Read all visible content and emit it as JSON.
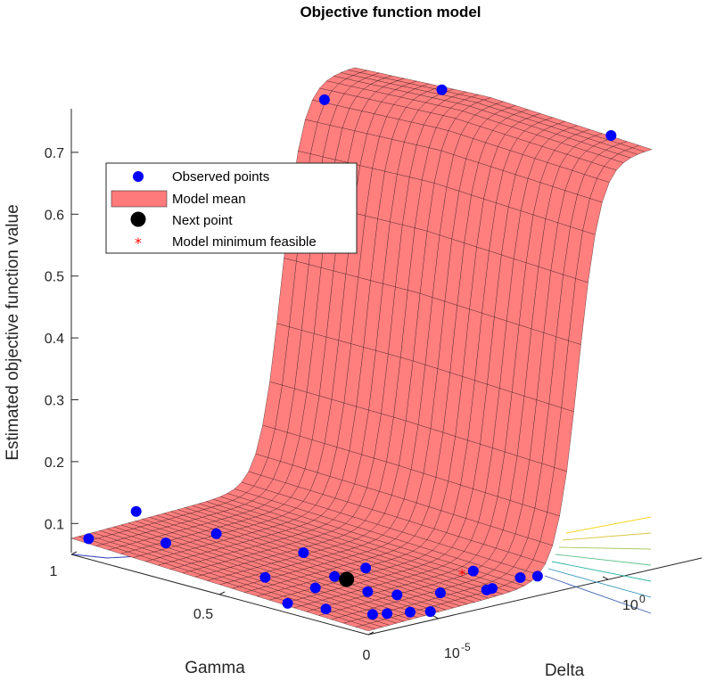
{
  "chart_data": {
    "type": "surface3d",
    "title": "Objective function model",
    "xlabel": "Gamma",
    "ylabel": "Delta",
    "zlabel": "Estimated objective function value",
    "x_ticks": [
      "0",
      "0.5",
      "1"
    ],
    "y_ticks": [
      "10",
      "10"
    ],
    "y_tick_exponents": [
      "-5",
      "0"
    ],
    "y_scale": "log",
    "z_ticks": [
      "0.1",
      "0.2",
      "0.3",
      "0.4",
      "0.5",
      "0.6",
      "0.7"
    ],
    "z_range": [
      0.05,
      0.75
    ],
    "x_range": [
      0,
      1
    ],
    "log10_delta_range": [
      -7,
      3
    ],
    "legend": {
      "placement": "upper-left",
      "entries": [
        {
          "label": "Observed points",
          "marker": "dot",
          "color": "#0000ff"
        },
        {
          "label": "Model mean",
          "marker": "patch",
          "color": "#ff7a7a"
        },
        {
          "label": "Next point",
          "marker": "dot",
          "color": "#000000"
        },
        {
          "label": "Model minimum feasible",
          "marker": "asterisk",
          "color": "#ff0000"
        }
      ]
    },
    "surface_color": "#ff7a7a",
    "surface_edge_color": "#2a1515",
    "observed_points": [
      {
        "gamma": 0.98,
        "log_delta": -6.6,
        "value": 0.073
      },
      {
        "gamma": 0.72,
        "log_delta": -6.6,
        "value": 0.1
      },
      {
        "gamma": 0.82,
        "log_delta": -6.6,
        "value": 0.138
      },
      {
        "gamma": 0.55,
        "log_delta": -6.6,
        "value": 0.137
      },
      {
        "gamma": 0.5,
        "log_delta": -5.4,
        "value": 0.058
      },
      {
        "gamma": 0.3,
        "log_delta": -6.7,
        "value": 0.058
      },
      {
        "gamma": 0.2,
        "log_delta": -6.4,
        "value": 0.058
      },
      {
        "gamma": 0.35,
        "log_delta": -5.2,
        "value": 0.058
      },
      {
        "gamma": 0.1,
        "log_delta": -5.8,
        "value": 0.055
      },
      {
        "gamma": 0.08,
        "log_delta": -5.5,
        "value": 0.055
      },
      {
        "gamma": 0.05,
        "log_delta": -5.0,
        "value": 0.055
      },
      {
        "gamma": 0.02,
        "log_delta": -4.6,
        "value": 0.055
      },
      {
        "gamma": 0.25,
        "log_delta": -4.4,
        "value": 0.055
      },
      {
        "gamma": 0.18,
        "log_delta": -4.1,
        "value": 0.055
      },
      {
        "gamma": 0.4,
        "log_delta": -4.0,
        "value": 0.055
      },
      {
        "gamma": 0.6,
        "log_delta": -3.0,
        "value": 0.055
      },
      {
        "gamma": 0.12,
        "log_delta": -3.2,
        "value": 0.055
      },
      {
        "gamma": 0.4,
        "log_delta": -2.9,
        "value": 0.055
      },
      {
        "gamma": 0.06,
        "log_delta": -2.2,
        "value": 0.055
      },
      {
        "gamma": 0.06,
        "log_delta": -2.0,
        "value": 0.055
      },
      {
        "gamma": 0.2,
        "log_delta": -1.2,
        "value": 0.055
      },
      {
        "gamma": 0.08,
        "log_delta": -0.8,
        "value": 0.055
      },
      {
        "gamma": 0.06,
        "log_delta": -0.4,
        "value": 0.055
      },
      {
        "gamma": 0.94,
        "log_delta": 1.3,
        "value": 0.69
      },
      {
        "gamma": 0.65,
        "log_delta": 2.4,
        "value": 0.73
      },
      {
        "gamma": 0.08,
        "log_delta": 2.4,
        "value": 0.73
      }
    ],
    "next_point": {
      "gamma": 0.35,
      "log_delta": -4.1,
      "value": 0.058
    },
    "model_minimum_feasible": {
      "gamma": 0.2,
      "log_delta": -1.6,
      "value": 0.055
    }
  }
}
